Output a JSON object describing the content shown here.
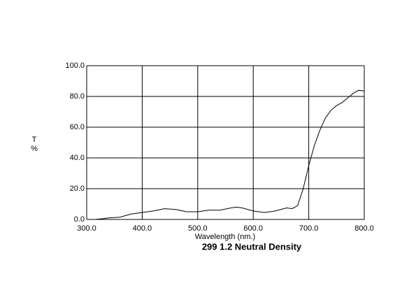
{
  "chart_data": {
    "type": "line",
    "title": "299 1.2 Neutral Density",
    "xlabel": "Wavelength (nm.)",
    "ylabel": [
      "T",
      "%"
    ],
    "x": [
      315,
      330,
      340,
      360,
      380,
      400,
      420,
      440,
      460,
      480,
      500,
      520,
      540,
      560,
      570,
      580,
      600,
      620,
      640,
      660,
      670,
      680,
      690,
      700,
      710,
      720,
      730,
      740,
      750,
      760,
      770,
      780,
      790,
      800
    ],
    "series": [
      {
        "color": "#000000",
        "values": [
          0,
          0.5,
          1,
          1.5,
          3.5,
          4.5,
          5.5,
          7,
          6.5,
          5,
          5,
          6,
          6,
          7.5,
          8,
          7.5,
          5.5,
          4.5,
          5.5,
          7.5,
          7,
          9,
          20,
          35,
          48,
          58,
          66,
          71,
          74,
          76,
          79,
          82,
          84,
          83.5
        ]
      }
    ],
    "xlim": [
      300,
      800
    ],
    "ylim": [
      0,
      100
    ],
    "xticks": [
      {
        "value": 300,
        "label": "300.0"
      },
      {
        "value": 400,
        "label": "400.0"
      },
      {
        "value": 500,
        "label": "500.0"
      },
      {
        "value": 600,
        "label": "600.0"
      },
      {
        "value": 700,
        "label": "700.0"
      },
      {
        "value": 800,
        "label": "800.0"
      }
    ],
    "yticks": [
      {
        "value": 0,
        "label": "0.0"
      },
      {
        "value": 20,
        "label": "20.0"
      },
      {
        "value": 40,
        "label": "40.0"
      },
      {
        "value": 60,
        "label": "60.0"
      },
      {
        "value": 80,
        "label": "80.0"
      },
      {
        "value": 100,
        "label": "100.0"
      }
    ],
    "grid": true
  }
}
